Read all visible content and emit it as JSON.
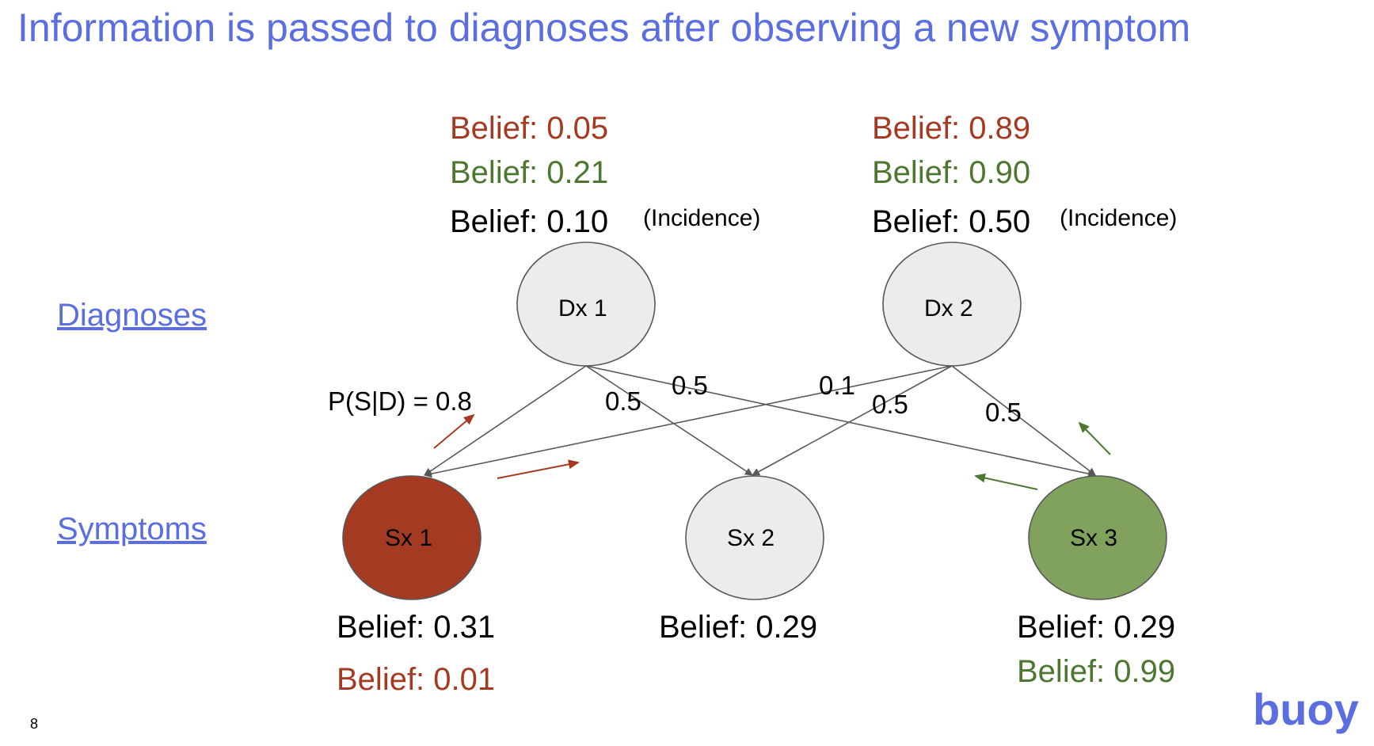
{
  "title": "Information is passed to diagnoses after observing a new symptom",
  "sections": {
    "diagnoses": "Diagnoses",
    "symptoms": "Symptoms"
  },
  "colors": {
    "accent": "#5b6ee1",
    "observed_red": "#a53a22",
    "observed_green": "#80a25c",
    "node_gray": "#ececec"
  },
  "diagnoses": [
    {
      "label": "Dx 1",
      "belief_red": "Belief: 0.05",
      "belief_green": "Belief: 0.21",
      "belief_incidence": "Belief: 0.10",
      "incidence_note": "(Incidence)"
    },
    {
      "label": "Dx 2",
      "belief_red": "Belief: 0.89",
      "belief_green": "Belief: 0.90",
      "belief_incidence": "Belief: 0.50",
      "incidence_note": "(Incidence)"
    }
  ],
  "symptoms": [
    {
      "label": "Sx 1",
      "state": "observed-red",
      "belief_black": "Belief: 0.31",
      "belief_colored": "Belief: 0.01"
    },
    {
      "label": "Sx 2",
      "state": "unobserved",
      "belief_black": "Belief: 0.29"
    },
    {
      "label": "Sx 3",
      "state": "observed-green",
      "belief_black": "Belief: 0.29",
      "belief_colored": "Belief: 0.99"
    }
  ],
  "edges": [
    {
      "from": "Dx 1",
      "to": "Sx 1",
      "label": "P(S|D) = 0.8"
    },
    {
      "from": "Dx 1",
      "to": "Sx 2",
      "label": "0.5"
    },
    {
      "from": "Dx 1",
      "to": "Sx 3",
      "label": "0.5"
    },
    {
      "from": "Dx 2",
      "to": "Sx 1",
      "label": "0.1"
    },
    {
      "from": "Dx 2",
      "to": "Sx 2",
      "label": "0.5"
    },
    {
      "from": "Dx 2",
      "to": "Sx 3",
      "label": "0.5"
    }
  ],
  "page_number": "8",
  "logo_text": "buoy"
}
